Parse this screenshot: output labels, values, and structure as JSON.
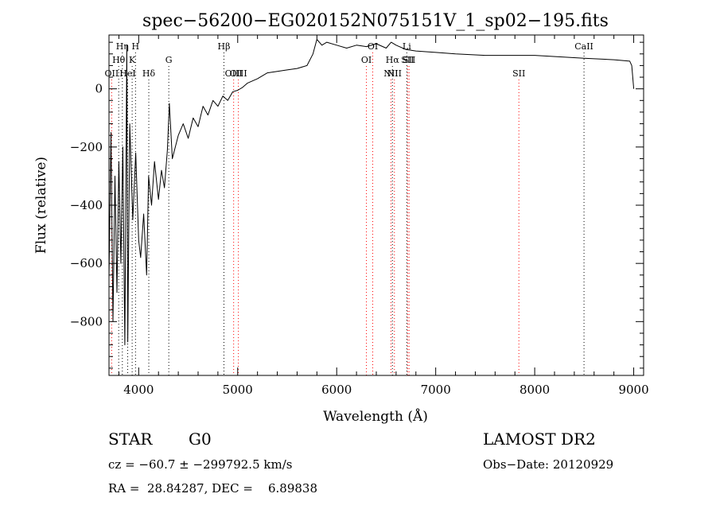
{
  "chart_data": {
    "type": "line",
    "title": "spec−56200−EG020152N075151V_1_sp02−195.fits",
    "xlabel": "Wavelength (Å)",
    "ylabel": "Flux (relative)",
    "xlim": [
      3700,
      9100
    ],
    "ylim": [
      -985,
      185
    ],
    "x_ticks": [
      4000,
      5000,
      6000,
      7000,
      8000,
      9000
    ],
    "y_ticks": [
      -800,
      -600,
      -400,
      -200,
      0
    ],
    "x_tick_labels": [
      "4000",
      "5000",
      "6000",
      "7000",
      "8000",
      "9000"
    ],
    "y_tick_labels": [
      "−800",
      "−600",
      "−400",
      "−200",
      "0"
    ],
    "series": [
      {
        "color": "#000000",
        "points": [
          [
            3700,
            -650
          ],
          [
            3720,
            -150
          ],
          [
            3740,
            -800
          ],
          [
            3760,
            -300
          ],
          [
            3780,
            -700
          ],
          [
            3800,
            -250
          ],
          [
            3820,
            -600
          ],
          [
            3840,
            -200
          ],
          [
            3860,
            -880
          ],
          [
            3880,
            150
          ],
          [
            3890,
            -870
          ],
          [
            3910,
            -120
          ],
          [
            3940,
            -450
          ],
          [
            3970,
            -220
          ],
          [
            4000,
            -520
          ],
          [
            4020,
            -580
          ],
          [
            4050,
            -430
          ],
          [
            4080,
            -640
          ],
          [
            4100,
            -300
          ],
          [
            4130,
            -400
          ],
          [
            4160,
            -250
          ],
          [
            4200,
            -380
          ],
          [
            4230,
            -280
          ],
          [
            4260,
            -340
          ],
          [
            4290,
            -210
          ],
          [
            4310,
            -50
          ],
          [
            4340,
            -240
          ],
          [
            4400,
            -160
          ],
          [
            4450,
            -120
          ],
          [
            4500,
            -170
          ],
          [
            4550,
            -100
          ],
          [
            4600,
            -130
          ],
          [
            4650,
            -60
          ],
          [
            4700,
            -90
          ],
          [
            4750,
            -40
          ],
          [
            4800,
            -60
          ],
          [
            4850,
            -25
          ],
          [
            4900,
            -40
          ],
          [
            4950,
            -10
          ],
          [
            5000,
            -5
          ],
          [
            5050,
            5
          ],
          [
            5100,
            20
          ],
          [
            5200,
            35
          ],
          [
            5300,
            55
          ],
          [
            5400,
            60
          ],
          [
            5500,
            65
          ],
          [
            5600,
            70
          ],
          [
            5700,
            80
          ],
          [
            5760,
            120
          ],
          [
            5800,
            170
          ],
          [
            5850,
            150
          ],
          [
            5900,
            160
          ],
          [
            6000,
            150
          ],
          [
            6100,
            140
          ],
          [
            6200,
            150
          ],
          [
            6300,
            145
          ],
          [
            6400,
            155
          ],
          [
            6500,
            140
          ],
          [
            6550,
            160
          ],
          [
            6600,
            150
          ],
          [
            6700,
            135
          ],
          [
            6800,
            130
          ],
          [
            7000,
            125
          ],
          [
            7200,
            120
          ],
          [
            7500,
            115
          ],
          [
            8000,
            115
          ],
          [
            8500,
            105
          ],
          [
            8800,
            100
          ],
          [
            8960,
            95
          ],
          [
            8980,
            80
          ],
          [
            9000,
            0
          ]
        ]
      }
    ],
    "line_markers": [
      {
        "label": "OII",
        "wave": 3727,
        "row": 3,
        "style": "emission"
      },
      {
        "label": "Hθ",
        "wave": 3798,
        "row": 2,
        "style": "absorption"
      },
      {
        "label": "Hη",
        "wave": 3835,
        "row": 1,
        "style": "absorption"
      },
      {
        "label": "HeI",
        "wave": 3889,
        "row": 3,
        "style": "absorption"
      },
      {
        "label": "K",
        "wave": 3934,
        "row": 2,
        "style": "absorption"
      },
      {
        "label": "H",
        "wave": 3968,
        "row": 1,
        "style": "absorption"
      },
      {
        "label": "Hδ",
        "wave": 4102,
        "row": 3,
        "style": "absorption"
      },
      {
        "label": "G",
        "wave": 4304,
        "row": 2,
        "style": "absorption"
      },
      {
        "label": "Hβ",
        "wave": 4861,
        "row": 1,
        "style": "absorption"
      },
      {
        "label": "OIII",
        "wave": 4959,
        "row": 3,
        "style": "emission"
      },
      {
        "label": "OIII",
        "wave": 5007,
        "row": 3,
        "style": "emission"
      },
      {
        "label": "OI",
        "wave": 6300,
        "row": 2,
        "style": "emission"
      },
      {
        "label": "OI",
        "wave": 6364,
        "row": 1,
        "style": "emission"
      },
      {
        "label": "NII",
        "wave": 6548,
        "row": 3,
        "style": "emission"
      },
      {
        "label": "Hα",
        "wave": 6563,
        "row": 2,
        "style": "absorption"
      },
      {
        "label": "NII",
        "wave": 6583,
        "row": 3,
        "style": "emission"
      },
      {
        "label": "Li",
        "wave": 6708,
        "row": 1,
        "style": "absorption"
      },
      {
        "label": "SII",
        "wave": 6716,
        "row": 2,
        "style": "emission"
      },
      {
        "label": "SII",
        "wave": 6731,
        "row": 2,
        "style": "emission"
      },
      {
        "label": "SII",
        "wave": 7840,
        "row": 3,
        "style": "emission"
      },
      {
        "label": "CaII",
        "wave": 8498,
        "row": 1,
        "style": "absorption"
      }
    ]
  },
  "info": {
    "class_label": "STAR",
    "subclass": "G0",
    "survey": "LAMOST DR2",
    "cz_line": "cz = −60.7 ± −299792.5 km/s",
    "obs_date": "Obs−Date: 20120929",
    "radec_line": "RA =  28.84287, DEC =    6.89838"
  },
  "colors": {
    "emission_marker": "#ff0000",
    "absorption_marker": "#000000"
  }
}
